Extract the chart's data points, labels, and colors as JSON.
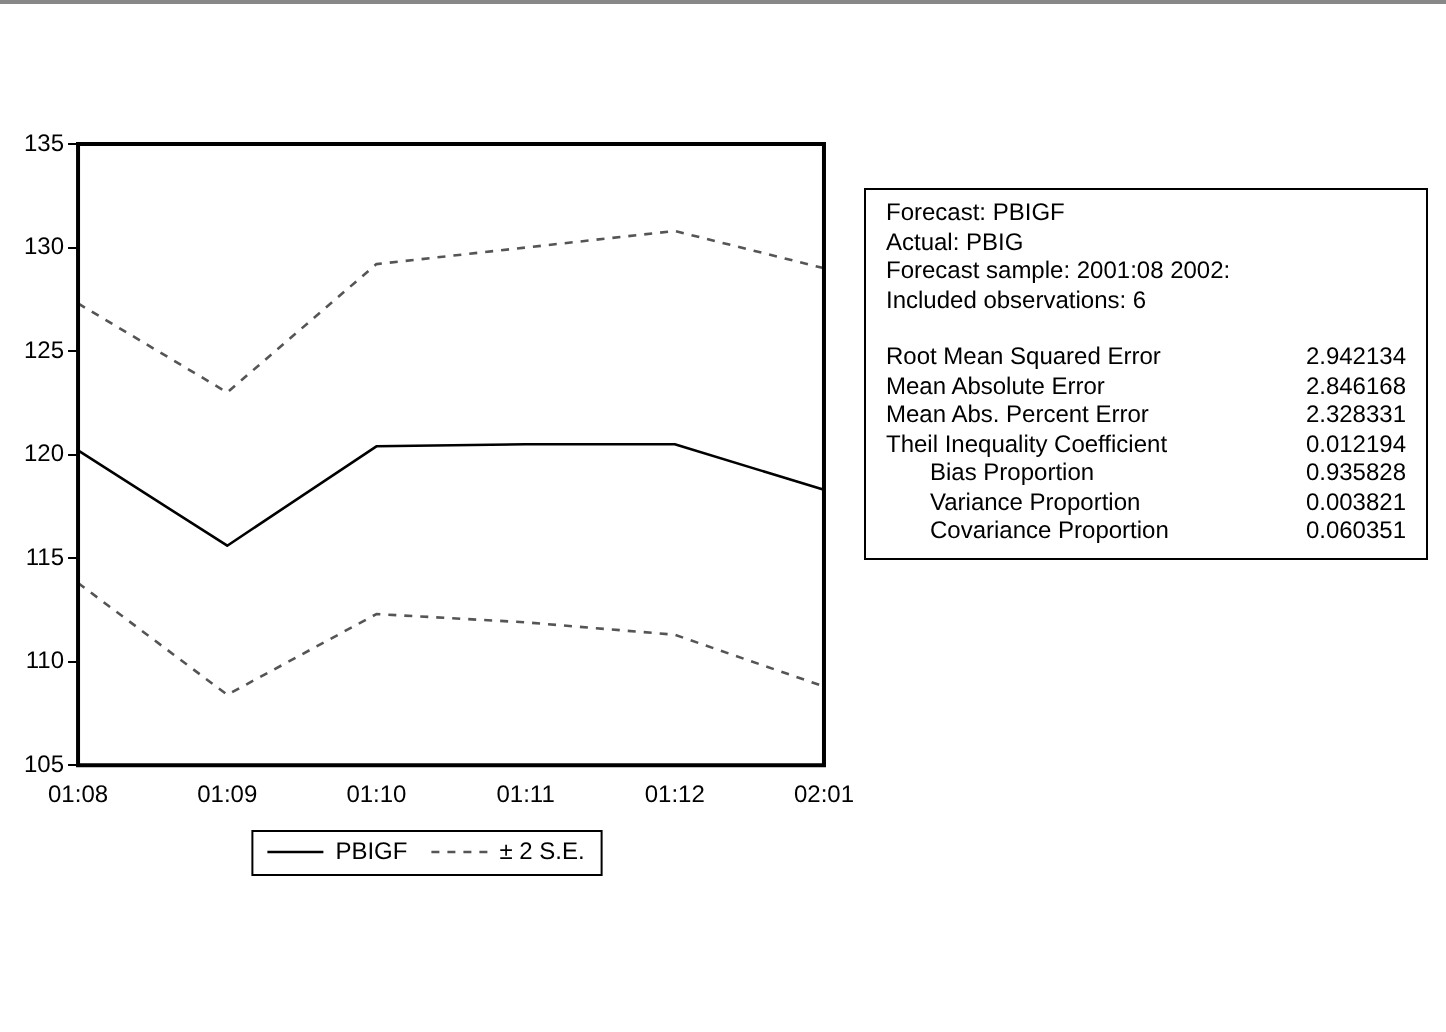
{
  "chart_data": {
    "type": "line",
    "categories": [
      "01:08",
      "01:09",
      "01:10",
      "01:11",
      "01:12",
      "02:01"
    ],
    "series": [
      {
        "name": "PBIGF",
        "color": "#000000",
        "line_style": "solid",
        "values": [
          120.2,
          115.6,
          120.4,
          120.5,
          120.5,
          118.3
        ]
      },
      {
        "name": "± 2 S.E.",
        "color": "#555555",
        "line_style": "dashed",
        "values": [
          127.3,
          123.0,
          129.2,
          130.0,
          130.8,
          129.0
        ]
      },
      {
        "color": "#555555",
        "line_style": "dashed",
        "values": [
          113.8,
          108.4,
          112.3,
          111.9,
          111.3,
          108.8
        ]
      }
    ],
    "ylim": [
      105,
      135
    ],
    "yticks": [
      105,
      110,
      115,
      120,
      125,
      130,
      135
    ],
    "grid": false,
    "legend": "bottom",
    "marker": "none",
    "annotations": [
      "Forecast: PBIGF",
      "Actual: PBIG",
      "Forecast sample: 2001:08 2002:",
      "Included observations: 6",
      "Root Mean Squared Error 2.942134",
      "Mean Absolute Error 2.846168",
      "Mean Abs. Percent Error 2.328331",
      "Theil Inequality Coefficient 0.012194",
      "Bias Proportion 0.935828",
      "Variance Proportion 0.003821",
      "Covariance Proportion 0.060351"
    ]
  }
}
